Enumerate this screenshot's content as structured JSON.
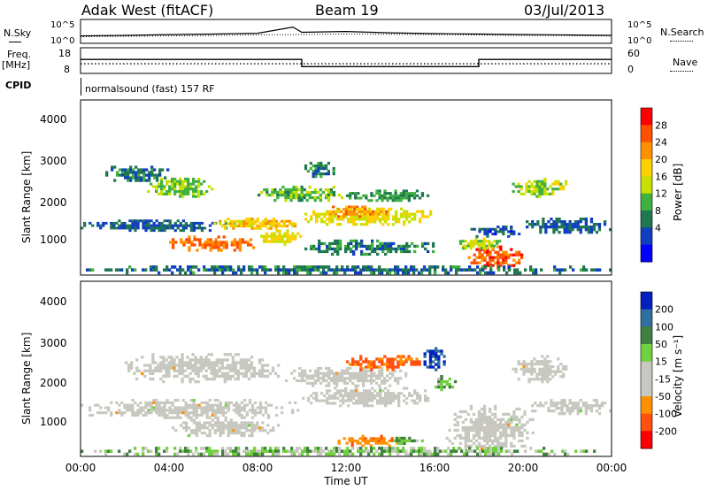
{
  "header": {
    "station": "Adak West (fitACF)",
    "beam": "Beam 19",
    "date": "03/Jul/2013"
  },
  "params": {
    "nsky_label": "N.Sky",
    "nsearch_label": "N.Search",
    "freq_label": "Freq.",
    "freq_unit": "[MHz]",
    "nave_label": "Nave",
    "cpid_label": "CPID",
    "cpid_text": "normalsound (fast) 157 RF",
    "noise_left_ticks": [
      "10^5",
      "10^0"
    ],
    "noise_right_ticks": [
      "10^5",
      "10^0"
    ],
    "freq_ticks": [
      "18",
      "8"
    ],
    "nave_ticks": [
      "60",
      "0"
    ]
  },
  "axes": {
    "xlabel": "Time UT",
    "x_ticks": [
      "00:00",
      "04:00",
      "08:00",
      "12:00",
      "16:00",
      "20:00",
      "00:00"
    ],
    "ylabel": "Slant Range [km]",
    "y_ticks": [
      "4000",
      "3000",
      "2000",
      "1000"
    ]
  },
  "colorbars": {
    "power": {
      "label": "Power [dB]",
      "ticks": [
        "28",
        "24",
        "20",
        "16",
        "12",
        "8",
        "4"
      ],
      "colors": [
        "#ff0000",
        "#ff5000",
        "#ff9000",
        "#ffd000",
        "#c8e000",
        "#40b040",
        "#207850",
        "#1040c0",
        "#0000ff"
      ]
    },
    "velocity": {
      "label": "Velocity [m s⁻¹]",
      "ticks": [
        "200",
        "100",
        "50",
        "15",
        "-15",
        "-50",
        "-100",
        "-200"
      ],
      "colors": [
        "#0020c0",
        "#3070a0",
        "#408040",
        "#70d040",
        "#c8c8c0",
        "#c8c8c0",
        "#ff9000",
        "#ff5010",
        "#ff0000"
      ]
    }
  },
  "chart_data": [
    {
      "type": "line",
      "title": "N.Sky / N.Search",
      "x_range": [
        0,
        24
      ],
      "y_scale": "log",
      "ylim": [
        1,
        100000
      ],
      "series": [
        {
          "name": "N.Sky",
          "style": "solid",
          "x": [
            0,
            2,
            4,
            6,
            8,
            9.6,
            10,
            12,
            14,
            16,
            18,
            20,
            22,
            24
          ],
          "values": [
            30,
            40,
            60,
            80,
            120,
            3000,
            200,
            300,
            150,
            100,
            80,
            60,
            50,
            40
          ]
        },
        {
          "name": "N.Search",
          "style": "dotted",
          "x": [
            0,
            4,
            8,
            12,
            16,
            20,
            24
          ],
          "values": [
            20,
            30,
            50,
            80,
            60,
            40,
            30
          ]
        }
      ]
    },
    {
      "type": "line",
      "title": "Freq. / Nave",
      "x_range": [
        0,
        24
      ],
      "series": [
        {
          "name": "Freq.",
          "unit": "MHz",
          "ylim": [
            8,
            18
          ],
          "style": "solid",
          "x": [
            0,
            10,
            10,
            18,
            18,
            24
          ],
          "values": [
            13.5,
            13.5,
            10.5,
            10.5,
            13.5,
            13.5
          ]
        },
        {
          "name": "Nave",
          "ylim": [
            0,
            60
          ],
          "style": "dotted",
          "x": [
            0,
            24
          ],
          "values": [
            22,
            22
          ]
        }
      ]
    },
    {
      "type": "heatmap",
      "title": "Power [dB]",
      "xlabel": "Time UT",
      "ylabel": "Slant Range [km]",
      "xlim": [
        0,
        24
      ],
      "ylim": [
        180,
        4550
      ],
      "clim": [
        0,
        32
      ],
      "features": [
        {
          "t0": 0,
          "t1": 7,
          "r0": 1250,
          "r1": 1550,
          "level": 6
        },
        {
          "t0": 6,
          "t1": 10,
          "r0": 1300,
          "r1": 1600,
          "level": 20
        },
        {
          "t0": 4,
          "t1": 8,
          "r0": 750,
          "r1": 1150,
          "level": 26
        },
        {
          "t0": 8,
          "t1": 10,
          "r0": 900,
          "r1": 1300,
          "level": 18
        },
        {
          "t0": 10,
          "t1": 16,
          "r0": 1400,
          "r1": 1850,
          "level": 18
        },
        {
          "t0": 11,
          "t1": 14,
          "r0": 1600,
          "r1": 1900,
          "level": 24
        },
        {
          "t0": 3,
          "t1": 6,
          "r0": 2100,
          "r1": 2600,
          "level": 14
        },
        {
          "t0": 1,
          "t1": 4,
          "r0": 2500,
          "r1": 2900,
          "level": 8
        },
        {
          "t0": 8,
          "t1": 12,
          "r0": 2000,
          "r1": 2400,
          "level": 12
        },
        {
          "t0": 12,
          "t1": 16,
          "r0": 2000,
          "r1": 2300,
          "level": 10
        },
        {
          "t0": 10,
          "t1": 16,
          "r0": 650,
          "r1": 1050,
          "level": 8
        },
        {
          "t0": 17.5,
          "t1": 20,
          "r0": 300,
          "r1": 900,
          "level": 28
        },
        {
          "t0": 17,
          "t1": 19,
          "r0": 800,
          "r1": 1100,
          "level": 16
        },
        {
          "t0": 19.5,
          "t1": 22,
          "r0": 2100,
          "r1": 2600,
          "level": 16
        },
        {
          "t0": 20,
          "t1": 24,
          "r0": 1200,
          "r1": 1600,
          "level": 6
        },
        {
          "t0": 17.5,
          "t1": 20,
          "r0": 1100,
          "r1": 1400,
          "level": 5
        },
        {
          "t0": 10,
          "t1": 11.5,
          "r0": 2600,
          "r1": 3000,
          "level": 9
        },
        {
          "t0": 0,
          "t1": 24,
          "r0": 180,
          "r1": 400,
          "level": 7
        }
      ]
    },
    {
      "type": "heatmap",
      "title": "Velocity [m s⁻¹]",
      "xlabel": "Time UT",
      "ylabel": "Slant Range [km]",
      "xlim": [
        0,
        24
      ],
      "ylim": [
        180,
        4550
      ],
      "clim": [
        -250,
        250
      ],
      "features": [
        {
          "t0": 0,
          "t1": 10,
          "r0": 1100,
          "r1": 1600,
          "velocity": 0
        },
        {
          "t0": 4,
          "t1": 9,
          "r0": 650,
          "r1": 1100,
          "velocity": 0
        },
        {
          "t0": 10,
          "t1": 16,
          "r0": 1400,
          "r1": 1900,
          "velocity": 0
        },
        {
          "t0": 2,
          "t1": 9,
          "r0": 2000,
          "r1": 2750,
          "velocity": 0
        },
        {
          "t0": 9,
          "t1": 15,
          "r0": 1900,
          "r1": 2400,
          "velocity": 0
        },
        {
          "t0": 16.5,
          "t1": 20.5,
          "r0": 250,
          "r1": 1450,
          "velocity": 0
        },
        {
          "t0": 19.5,
          "t1": 22,
          "r0": 2000,
          "r1": 2700,
          "velocity": 0
        },
        {
          "t0": 20,
          "t1": 24,
          "r0": 1200,
          "r1": 1600,
          "velocity": 0
        },
        {
          "t0": 11.5,
          "t1": 14.5,
          "r0": 400,
          "r1": 700,
          "velocity": -40
        },
        {
          "t0": 14,
          "t1": 15.5,
          "r0": 450,
          "r1": 650,
          "velocity": 30
        },
        {
          "t0": 12,
          "t1": 15.5,
          "r0": 2300,
          "r1": 2700,
          "velocity": -60
        },
        {
          "t0": 15.5,
          "t1": 16.5,
          "r0": 2300,
          "r1": 2900,
          "velocity": 150
        },
        {
          "t0": 16,
          "t1": 17,
          "r0": 1800,
          "r1": 2200,
          "velocity": 30
        },
        {
          "t0": 0,
          "t1": 24,
          "r0": 180,
          "r1": 400,
          "velocity": 20
        }
      ]
    }
  ]
}
